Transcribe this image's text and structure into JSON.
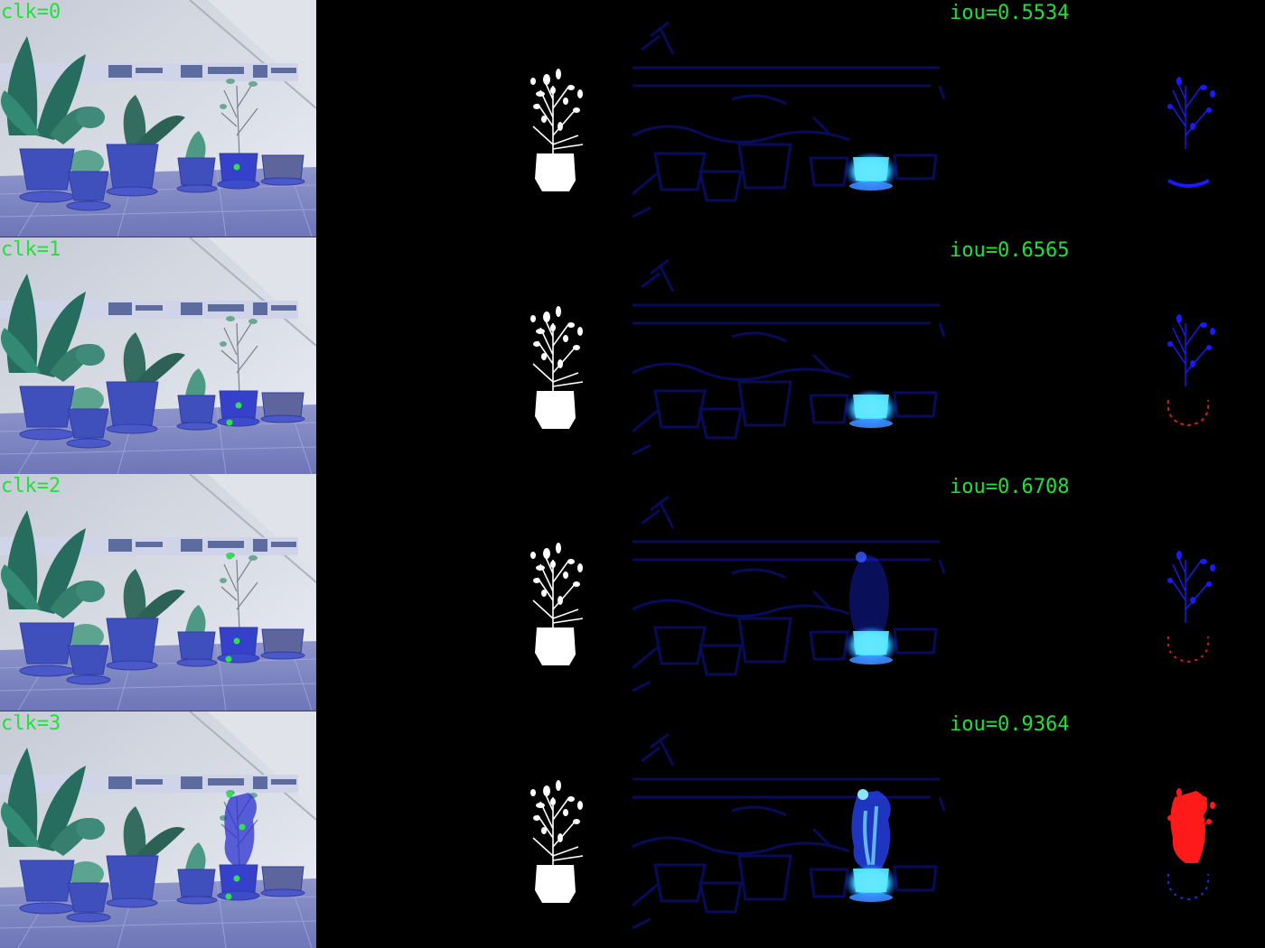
{
  "rows": [
    {
      "click_label": "clk=0",
      "iou_label": "iou=0.5534",
      "clicks": 1,
      "diff": "blue",
      "heat": 0.35
    },
    {
      "click_label": "clk=1",
      "iou_label": "iou=0.6565",
      "clicks": 2,
      "diff": "mixed",
      "heat": 0.4
    },
    {
      "click_label": "clk=2",
      "iou_label": "iou=0.6708",
      "clicks": 3,
      "diff": "mixed",
      "heat": 0.55
    },
    {
      "click_label": "clk=3",
      "iou_label": "iou=0.9364",
      "clicks": 4,
      "diff": "red",
      "heat": 1.0
    }
  ],
  "colors": {
    "label_green": "#22e03a",
    "mask_white": "#ffffff",
    "heat_blue": "#1a2cff",
    "heat_cyan": "#5ff0ff",
    "false_negative_blue": "#1a1aff",
    "false_positive_red": "#ff1a1a",
    "click_dot": "#2ee34a"
  }
}
